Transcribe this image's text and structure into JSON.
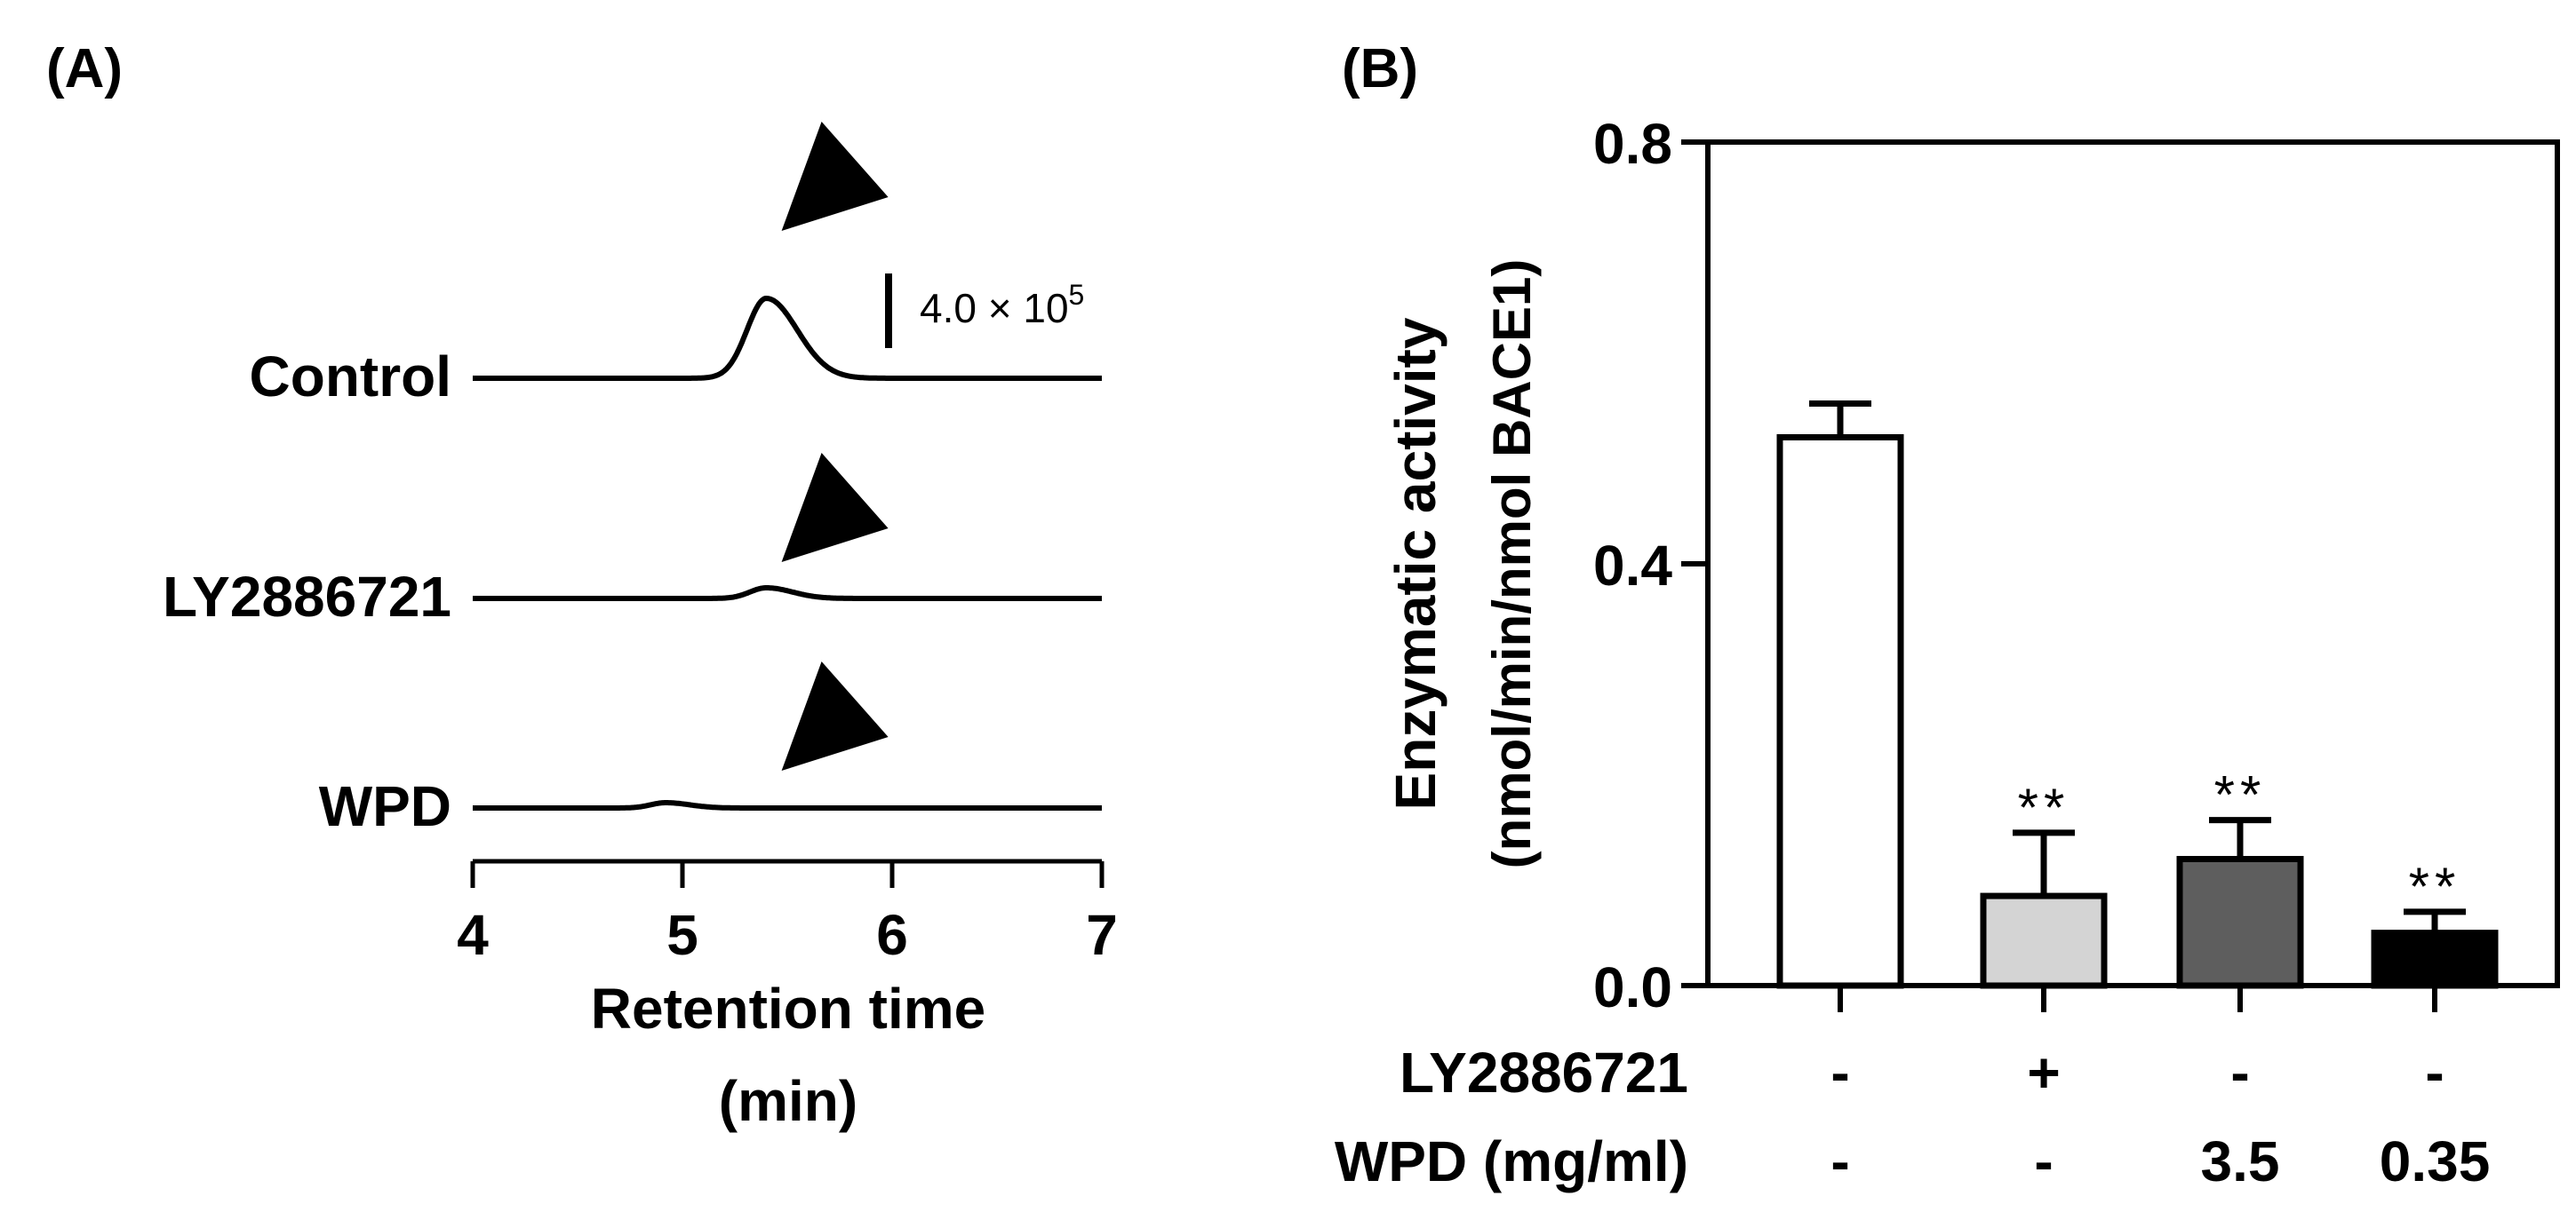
{
  "chart_data": [
    {
      "panel_label": "(A)",
      "type": "line",
      "xlabel_line1": "Retention time",
      "xlabel_line2": "(min)",
      "x_ticks": [
        "4",
        "5",
        "6",
        "7"
      ],
      "xlim": [
        4,
        7
      ],
      "scale_bar_label": "4.0 × 10",
      "scale_bar_exponent": "5",
      "scale_bar_value": 400000,
      "series": [
        {
          "name": "Control",
          "peak_time": 5.4,
          "peak_height": 3.0,
          "peak_width": 0.13,
          "arrow_time": 5.6
        },
        {
          "name": "LY2886721",
          "peak_time": 5.4,
          "peak_height": 0.4,
          "peak_width": 0.11,
          "arrow_time": 5.6
        },
        {
          "name": "WPD",
          "peak_time": 4.92,
          "peak_height": 0.2,
          "peak_width": 0.1,
          "arrow_time": 5.6
        }
      ]
    },
    {
      "panel_label": "(B)",
      "type": "bar",
      "ylabel_line1": "Enzymatic activity",
      "ylabel_line2": "(nmol/min/nmol BACE1)",
      "ylim": [
        0,
        0.8
      ],
      "y_ticks": [
        "0.0",
        "0.4",
        "0.8"
      ],
      "values": [
        0.52,
        0.085,
        0.12,
        0.05
      ],
      "errors": [
        0.032,
        0.06,
        0.037,
        0.02
      ],
      "significance": [
        "",
        "**",
        "**",
        "**"
      ],
      "colors": [
        "#ffffff",
        "#d4d4d4",
        "#5e5e5e",
        "#000000"
      ],
      "row_labels": [
        "LY2886721",
        "WPD (mg/ml)"
      ],
      "rows": [
        [
          "-",
          "+",
          "-",
          "-"
        ],
        [
          "-",
          "-",
          "3.5",
          "0.35"
        ]
      ]
    }
  ]
}
